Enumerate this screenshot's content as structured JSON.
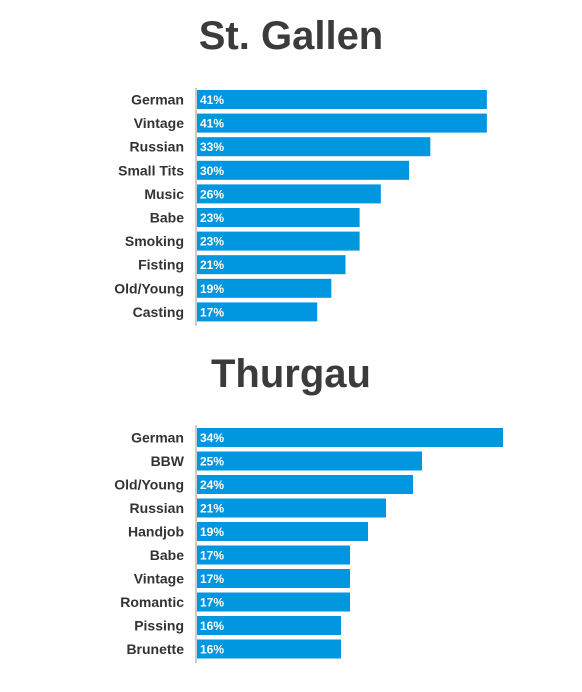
{
  "colors": {
    "bar": "#0096e0",
    "axis": "#999999",
    "title": "#3b3b3b",
    "label": "#333333"
  },
  "chart_data": [
    {
      "type": "bar",
      "orientation": "horizontal",
      "title": "St. Gallen",
      "categories": [
        "German",
        "Vintage",
        "Russian",
        "Small Tits",
        "Music",
        "Babe",
        "Smoking",
        "Fisting",
        "Old/Young",
        "Casting"
      ],
      "values": [
        41,
        41,
        33,
        30,
        26,
        23,
        23,
        21,
        19,
        17
      ],
      "value_labels": [
        "41%",
        "41%",
        "33%",
        "30%",
        "26%",
        "23%",
        "23%",
        "21%",
        "19%",
        "17%"
      ],
      "unit": "%",
      "grid": false,
      "legend": "none"
    },
    {
      "type": "bar",
      "orientation": "horizontal",
      "title": "Thurgau",
      "categories": [
        "German",
        "BBW",
        "Old/Young",
        "Russian",
        "Handjob",
        "Babe",
        "Vintage",
        "Romantic",
        "Pissing",
        "Brunette"
      ],
      "values": [
        34,
        25,
        24,
        21,
        19,
        17,
        17,
        17,
        16,
        16
      ],
      "value_labels": [
        "34%",
        "25%",
        "24%",
        "21%",
        "19%",
        "17%",
        "17%",
        "17%",
        "16%",
        "16%"
      ],
      "unit": "%",
      "grid": false,
      "legend": "none"
    }
  ]
}
